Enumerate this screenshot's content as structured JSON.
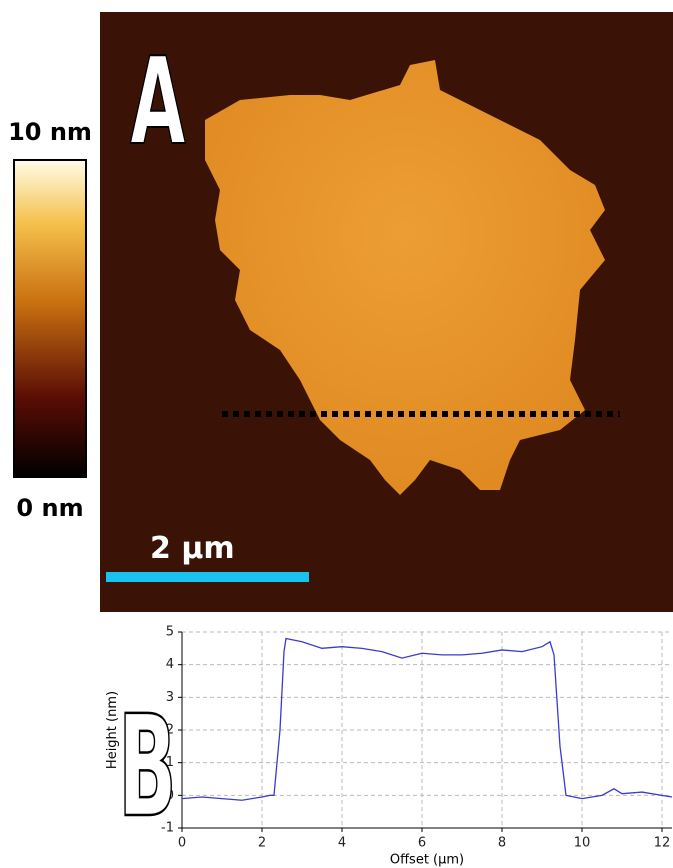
{
  "panel_a": {
    "label": "A",
    "colorbar_max": "10 nm",
    "colorbar_min": "0 nm",
    "scale_bar": "2 µm"
  },
  "panel_b": {
    "label": "B"
  },
  "chart_data": {
    "type": "line",
    "x_label": "Offset (µm)",
    "y_label": "Height (nm)",
    "x": [
      0,
      0.5,
      1,
      1.5,
      2,
      2.2,
      2.3,
      2.45,
      2.55,
      2.6,
      3,
      3.5,
      4,
      4.5,
      5,
      5.5,
      6,
      6.5,
      7,
      7.5,
      8,
      8.5,
      9,
      9.2,
      9.3,
      9.45,
      9.6,
      10,
      10.5,
      10.8,
      11,
      11.5,
      12,
      12.25
    ],
    "series": [
      {
        "color": "#3a3ad0",
        "values": [
          -0.1,
          -0.05,
          -0.1,
          -0.15,
          -0.05,
          0.0,
          0.0,
          2.0,
          4.4,
          4.8,
          4.7,
          4.5,
          4.55,
          4.5,
          4.4,
          4.2,
          4.35,
          4.3,
          4.3,
          4.35,
          4.45,
          4.4,
          4.55,
          4.7,
          4.3,
          1.5,
          0.0,
          -0.1,
          0.0,
          0.2,
          0.05,
          0.1,
          0.0,
          -0.05
        ]
      }
    ],
    "xlim": [
      0,
      12.25
    ],
    "ylim": [
      -1,
      5
    ],
    "xticks": [
      0,
      2,
      4,
      6,
      8,
      10,
      12
    ],
    "yticks": [
      -1,
      0,
      1,
      2,
      3,
      4,
      5
    ],
    "grid": true
  }
}
